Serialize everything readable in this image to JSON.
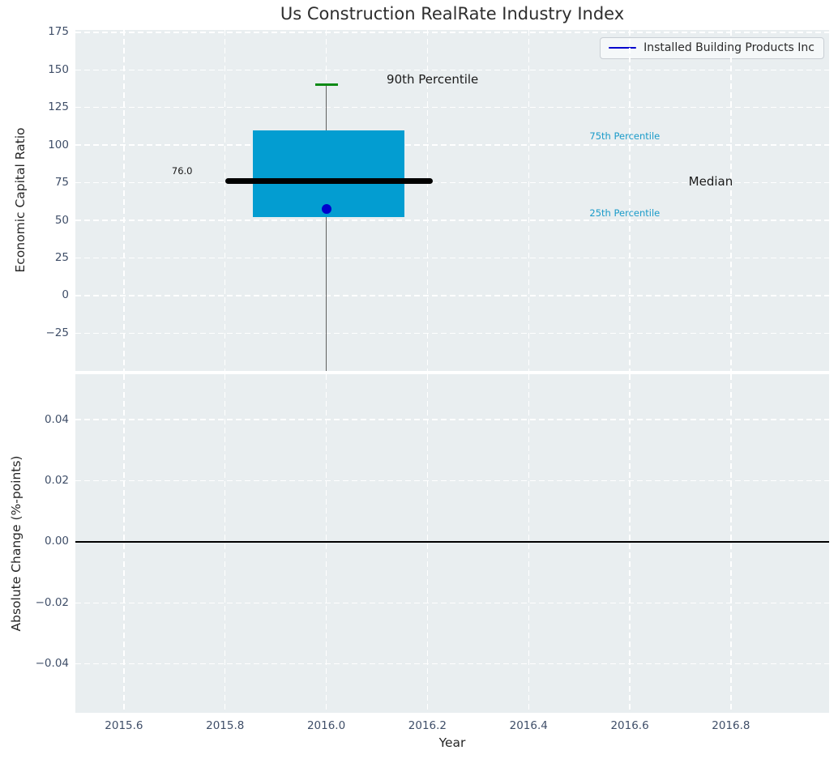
{
  "title": "Us Construction RealRate Industry Index",
  "legend": {
    "label": "Installed Building Products Inc",
    "line_color": "#0000cd"
  },
  "colors": {
    "axes_background": "#e9eef0",
    "grid": "#ffffff",
    "tick_label": "#3f4e68",
    "box_fill": "#039dd1",
    "median_line": "#000000",
    "whisker": "#5f5f5f",
    "p90_cap": "#0c8a15",
    "company_point": "#0000cd",
    "percentile_text": "#1a9bc9",
    "annotation_text": "#1a1a1a",
    "zero_line": "#000000"
  },
  "chart_data": [
    {
      "type": "boxplot",
      "subplot": "top",
      "title": "Us Construction RealRate Industry Index",
      "ylabel": "Economic Capital Ratio",
      "ylim": [
        -50.2,
        176.6
      ],
      "xlim": [
        2015.504,
        2016.994
      ],
      "yticks": [
        175,
        150,
        125,
        100,
        75,
        50,
        25,
        0,
        -25
      ],
      "ytick_labels": [
        "175",
        "150",
        "125",
        "100",
        "75",
        "50",
        "25",
        "0",
        "−25"
      ],
      "xticks": [
        2015.6,
        2015.8,
        2016.0,
        2016.2,
        2016.4,
        2016.6,
        2016.8
      ],
      "grid": true,
      "box": {
        "x_center": 2016.0,
        "x_left": 2015.855,
        "x_right": 2016.155,
        "q1": 52,
        "q3": 110,
        "median": 76,
        "median_x_left": 2015.8,
        "median_x_right": 2016.21,
        "p90": 140,
        "whisker_low_clipped_below_axis": true
      },
      "company_point": {
        "x": 2016.0,
        "y": 57.5
      },
      "annotations": [
        {
          "text": "76.0",
          "x": 2015.715,
          "y": 83,
          "color": "#1a1a1a",
          "size": 11.5
        },
        {
          "text": "90th Percentile",
          "x": 2016.21,
          "y": 144,
          "color": "#1a1a1a",
          "size": 15
        },
        {
          "text": "75th Percentile",
          "x": 2016.59,
          "y": 106,
          "color": "#1a9bc9",
          "size": 11.5
        },
        {
          "text": "Median",
          "x": 2016.76,
          "y": 75.8,
          "color": "#1a1a1a",
          "size": 15
        },
        {
          "text": "25th Percentile",
          "x": 2016.59,
          "y": 55,
          "color": "#1a9bc9",
          "size": 11.5
        }
      ]
    },
    {
      "type": "line",
      "subplot": "bottom",
      "ylabel": "Absolute Change (%-points)",
      "xlabel": "Year",
      "ylim": [
        -0.056,
        0.0549
      ],
      "xlim": [
        2015.504,
        2016.994
      ],
      "yticks": [
        0.04,
        0.02,
        0.0,
        -0.02,
        -0.04
      ],
      "ytick_labels": [
        "0.04",
        "0.02",
        "0.00",
        "−0.02",
        "−0.04"
      ],
      "xticks": [
        2015.6,
        2015.8,
        2016.0,
        2016.2,
        2016.4,
        2016.6,
        2016.8
      ],
      "xtick_labels": [
        "2015.6",
        "2015.8",
        "2016.0",
        "2016.2",
        "2016.4",
        "2016.6",
        "2016.8"
      ],
      "grid": true,
      "zero_line": 0.0,
      "series": []
    }
  ]
}
